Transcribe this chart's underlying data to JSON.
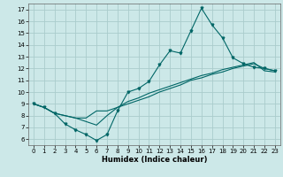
{
  "title": "",
  "xlabel": "Humidex (Indice chaleur)",
  "background_color": "#cce8e8",
  "grid_color": "#aacccc",
  "line_color": "#006666",
  "xlim": [
    -0.5,
    23.5
  ],
  "ylim": [
    5.5,
    17.5
  ],
  "xticks": [
    0,
    1,
    2,
    3,
    4,
    5,
    6,
    7,
    8,
    9,
    10,
    11,
    12,
    13,
    14,
    15,
    16,
    17,
    18,
    19,
    20,
    21,
    22,
    23
  ],
  "yticks": [
    6,
    7,
    8,
    9,
    10,
    11,
    12,
    13,
    14,
    15,
    16,
    17
  ],
  "line1_x": [
    0,
    1,
    2,
    3,
    4,
    5,
    6,
    7,
    8,
    9,
    10,
    11,
    12,
    13,
    14,
    15,
    16,
    17,
    18,
    19,
    20,
    21,
    22,
    23
  ],
  "line1_y": [
    9.0,
    8.7,
    8.2,
    7.3,
    6.8,
    6.4,
    5.9,
    6.4,
    8.4,
    10.0,
    10.3,
    10.9,
    12.3,
    13.5,
    13.3,
    15.2,
    17.1,
    15.7,
    14.6,
    12.9,
    12.4,
    12.1,
    12.0,
    11.8
  ],
  "line2_x": [
    0,
    1,
    2,
    3,
    4,
    5,
    6,
    7,
    8,
    9,
    10,
    11,
    12,
    13,
    14,
    15,
    16,
    17,
    18,
    19,
    20,
    21,
    22,
    23
  ],
  "line2_y": [
    9.0,
    8.7,
    8.2,
    8.0,
    7.8,
    7.8,
    8.4,
    8.4,
    8.7,
    9.0,
    9.3,
    9.6,
    10.0,
    10.3,
    10.6,
    11.0,
    11.2,
    11.5,
    11.7,
    12.0,
    12.2,
    12.4,
    12.0,
    11.8
  ],
  "line3_x": [
    0,
    1,
    2,
    3,
    4,
    5,
    6,
    7,
    8,
    9,
    10,
    11,
    12,
    13,
    14,
    15,
    16,
    17,
    18,
    19,
    20,
    21,
    22,
    23
  ],
  "line3_y": [
    9.0,
    8.7,
    8.2,
    8.0,
    7.8,
    7.5,
    7.2,
    8.0,
    8.7,
    9.2,
    9.5,
    9.9,
    10.2,
    10.5,
    10.8,
    11.1,
    11.4,
    11.6,
    11.9,
    12.1,
    12.3,
    12.5,
    11.8,
    11.7
  ],
  "tick_fontsize": 5,
  "xlabel_fontsize": 6,
  "linewidth": 0.8,
  "marker": "v",
  "markersize": 2.0
}
